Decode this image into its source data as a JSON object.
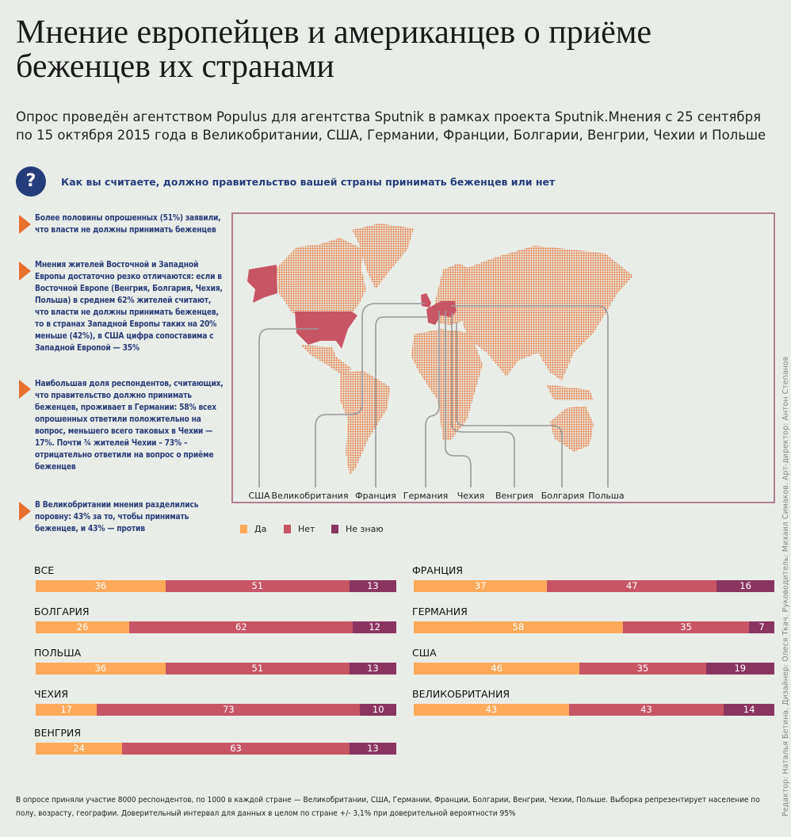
{
  "title": "Мнение европейцев и американцев о приёме беженцев их странами",
  "subtitle": "Опрос проведён агентством Populus для агентства Sputnik в рамках проекта Sputnik.Мнения с 25 сентября по 15 октября 2015 года в Великобритании, США, Германии, Франции, Болгарии, Венгрии, Чехии и Польше",
  "question": {
    "icon": "?",
    "text": "Как вы считаете, должно правительство вашей страны принимать беженцев или нет"
  },
  "bullets": [
    "Более половины опрошенных (51%) заявили, что власти не должны принимать беженцев",
    "Мнения жителей Восточной и Западной Европы достаточно резко отличаются: если в Восточной Европе (Венгрия, Болгария, Чехия, Польша) в среднем 62% жителей считают, что власти не должны принимать беженцев, то в странах Западной Европы таких на 20% меньше (42%), в США цифра сопоставима с Западной Европой — 35%",
    "Наибольшая доля респондентов, считающих, что правительство должно принимать беженцев, проживает в Германии: 58%  всех опрошенных ответили положительно на вопрос, меньшего всего таковых в Чехии — 17%. Почти ¾ жителей Чехии – 73% – отрицательно ответили на вопрос о приёме беженцев",
    "В Великобритании мнения разделились поровну: 43% за то, чтобы принимать беженцев, и 43% — против"
  ],
  "map": {
    "country_labels": [
      "США",
      "Великобритания",
      "Франция",
      "Германия",
      "Чехия",
      "Венгрия",
      "Болгария",
      "Польша"
    ],
    "colors": {
      "land": "#e8763a",
      "highlight": "#c85565",
      "border": "#b07e92",
      "connector": "#9a9a9a"
    }
  },
  "legend": [
    {
      "label": "Да",
      "color": "#ffaa5a"
    },
    {
      "label": "Нет",
      "color": "#c85565"
    },
    {
      "label": "Не знаю",
      "color": "#8a3560"
    }
  ],
  "chart_data": {
    "type": "bar",
    "stacked": true,
    "orientation": "horizontal",
    "series_names": [
      "Да",
      "Нет",
      "Не знаю"
    ],
    "colors": [
      "#ffaa5a",
      "#c85565",
      "#8a3560"
    ],
    "columns": [
      [
        {
          "label": "ВСЕ",
          "values": [
            36,
            51,
            13
          ]
        },
        {
          "label": "БОЛГАРИЯ",
          "values": [
            26,
            62,
            12
          ]
        },
        {
          "label": "ПОЛЬША",
          "values": [
            36,
            51,
            13
          ]
        },
        {
          "label": "ЧЕХИЯ",
          "values": [
            17,
            73,
            10
          ]
        },
        {
          "label": "ВЕНГРИЯ",
          "values": [
            24,
            63,
            13
          ]
        }
      ],
      [
        {
          "label": "ФРАНЦИЯ",
          "values": [
            37,
            47,
            16
          ]
        },
        {
          "label": "ГЕРМАНИЯ",
          "values": [
            58,
            35,
            7
          ]
        },
        {
          "label": "США",
          "values": [
            46,
            35,
            19
          ]
        },
        {
          "label": "ВЕЛИКОБРИТАНИЯ",
          "values": [
            43,
            43,
            14
          ]
        }
      ]
    ]
  },
  "footer": "В опросе приняли участие 8000 респондентов, по 1000 в каждой стране — Великобритании, США, Германии, Франции, Болгарии, Венгрии, Чехии, Польше. Выборка репрезентирует население по полу, возрасту, географии. Доверительный интервал для данных в целом по стране +/- 3,1% при доверительной вероятности 95%",
  "credits": "Редактор: Наталья Бетина. Дизайнер: Олеся Ткач. Руководитель: Михаил Симаков. Арт-директор: Антон Степанов"
}
